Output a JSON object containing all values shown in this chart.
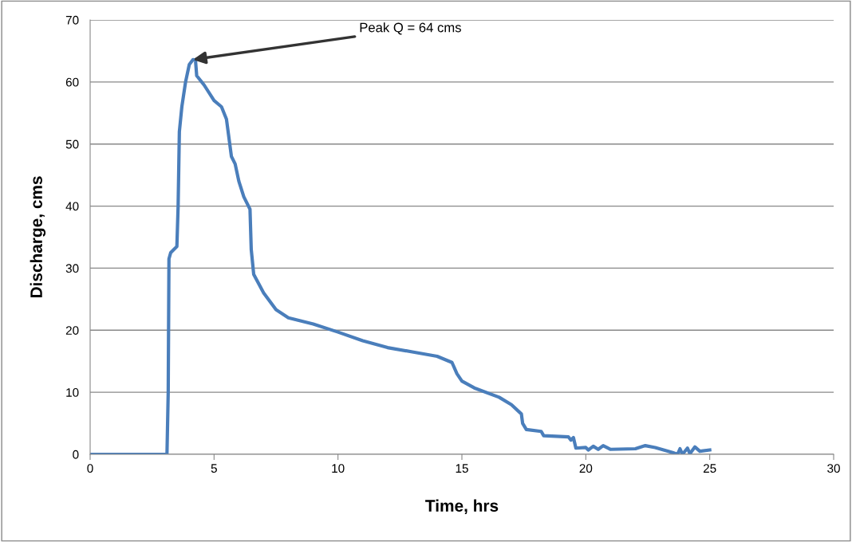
{
  "chart_data": {
    "type": "line",
    "xlabel": "Time, hrs",
    "ylabel": "Discharge, cms",
    "x": [
      0,
      3.1,
      3.15,
      3.18,
      3.25,
      3.5,
      3.55,
      3.6,
      3.7,
      3.85,
      4.0,
      4.15,
      4.25,
      4.3,
      4.6,
      5.0,
      5.3,
      5.5,
      5.7,
      5.85,
      6.0,
      6.2,
      6.45,
      6.5,
      6.6,
      7.0,
      7.5,
      8.0,
      9.0,
      10.0,
      11,
      12,
      13,
      14,
      14.6,
      14.8,
      15.0,
      15.5,
      16.5,
      17.0,
      17.4,
      17.45,
      17.6,
      18.2,
      18.3,
      19.3,
      19.4,
      19.5,
      19.6,
      20.0,
      20.1,
      20.3,
      20.5,
      20.7,
      21.0,
      22.0,
      22.4,
      22.8,
      23.5,
      23.7,
      23.8,
      23.9,
      24.1,
      24.2,
      24.4,
      24.6,
      25.0
    ],
    "series": [
      {
        "color": "#4a7ebb",
        "values": [
          0,
          0,
          10,
          31.5,
          32.5,
          33.5,
          40,
          52,
          56,
          60,
          62.8,
          63.6,
          63.5,
          61,
          59.5,
          57,
          56,
          54,
          48,
          46.8,
          44,
          41.5,
          39.5,
          33,
          29,
          26,
          23.3,
          22,
          21,
          19.7,
          18.3,
          17.2,
          16.5,
          15.8,
          14.8,
          13,
          11.8,
          10.7,
          9.2,
          8,
          6.5,
          5,
          4,
          3.7,
          3,
          2.8,
          2.3,
          2.7,
          1.0,
          1.1,
          0.7,
          1.3,
          0.8,
          1.4,
          0.8,
          0.9,
          1.4,
          1.1,
          0.3,
          0.0,
          0.9,
          0.0,
          1.0,
          0.1,
          1.2,
          0.5,
          0.7
        ]
      }
    ],
    "xlim": [
      0,
      30
    ],
    "xticks": [
      0,
      5,
      10,
      15,
      20,
      25,
      30
    ],
    "ylim": [
      0,
      70
    ],
    "yticks": [
      0,
      10,
      20,
      30,
      40,
      50,
      60,
      70
    ],
    "grid": "y",
    "legend": false,
    "marker": "none",
    "line_style": "solid",
    "annotations": [
      {
        "text": "Peak Q = 64 cms",
        "x": 4.15,
        "y": 63.6
      }
    ]
  }
}
